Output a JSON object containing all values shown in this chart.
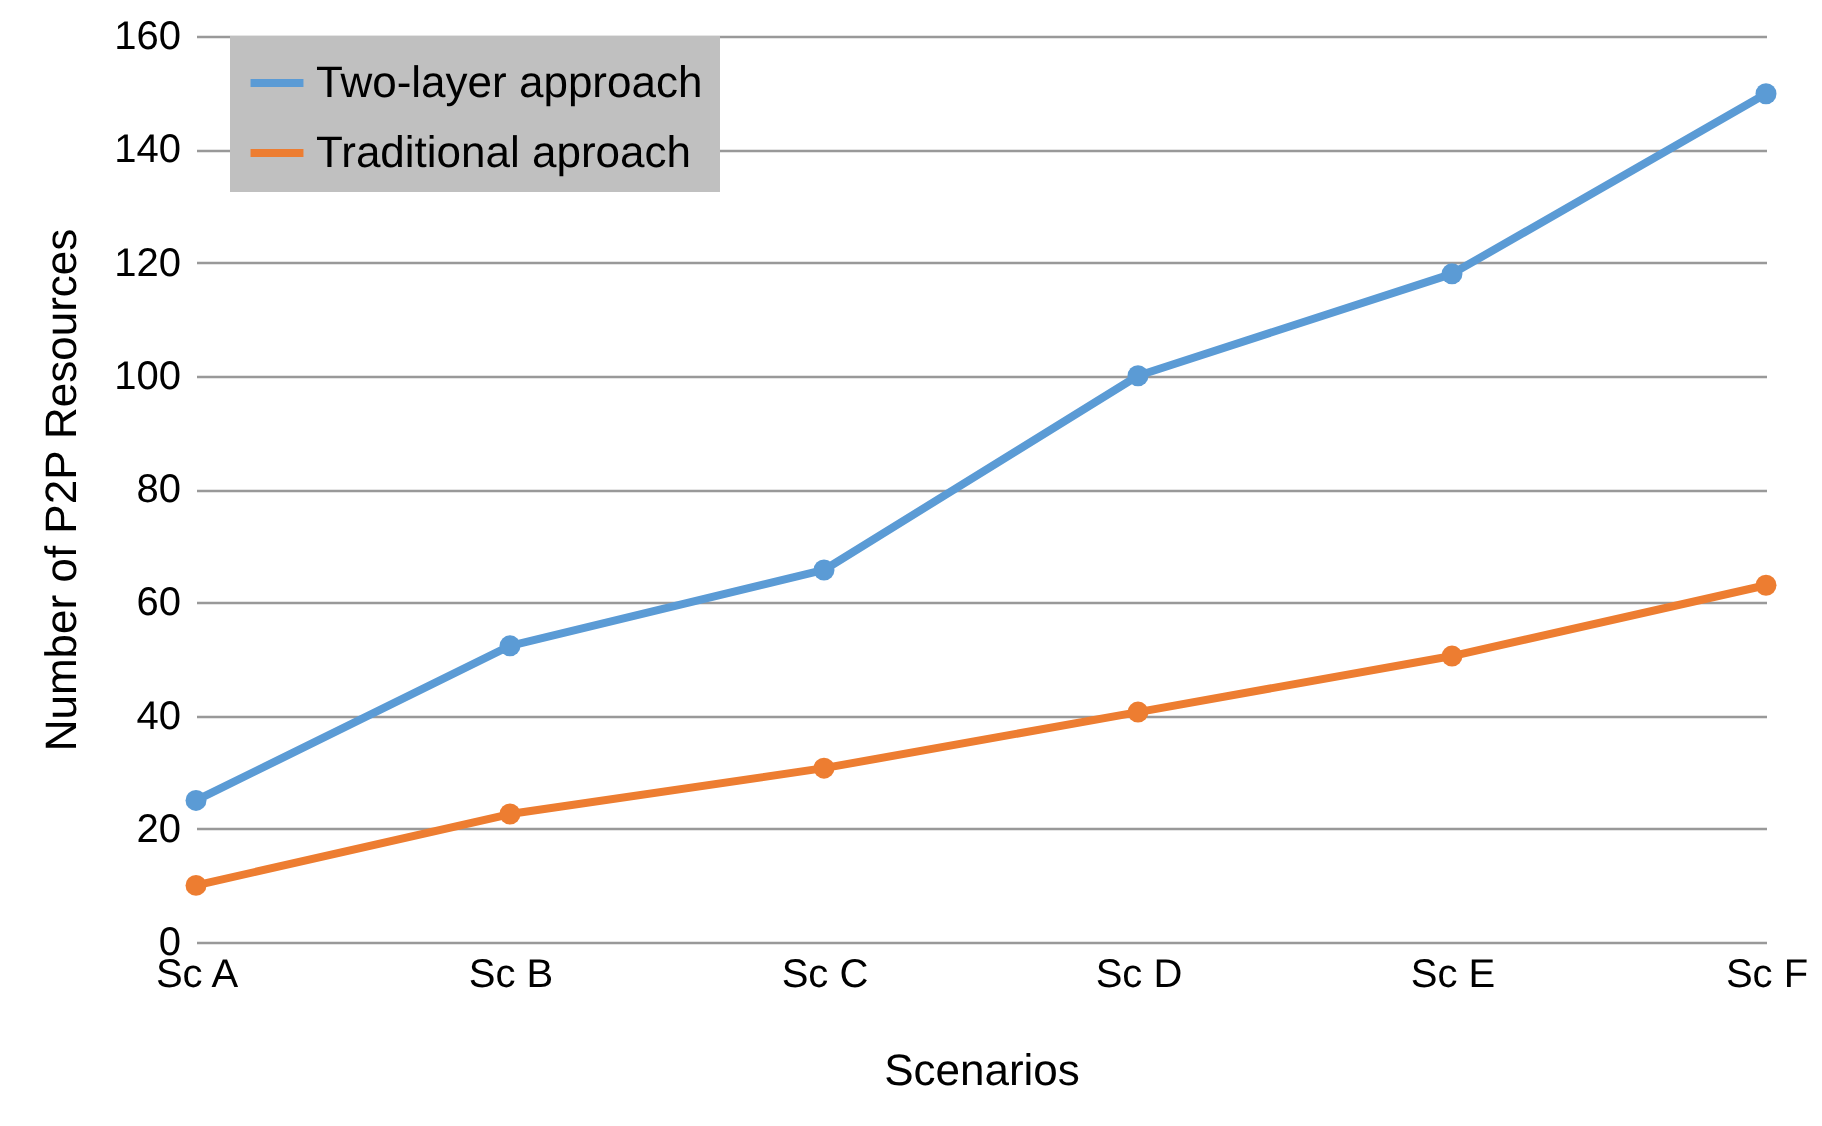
{
  "chart_data": {
    "type": "line",
    "xlabel": "Scenarios",
    "ylabel": "Number of P2P Resources",
    "categories": [
      "Sc A",
      "Sc B",
      "Sc C",
      "Sc D",
      "Sc E",
      "Sc F"
    ],
    "series": [
      {
        "name": "Two-layer approach",
        "color": "#5b9bd5",
        "values": [
          25,
          52.3,
          65.7,
          100,
          118,
          149.8
        ]
      },
      {
        "name": "Traditional aproach",
        "color": "#ed7d31",
        "values": [
          10,
          22.6,
          30.7,
          40.6,
          50.5,
          63
        ]
      }
    ],
    "ylim": [
      0,
      160
    ],
    "yticks": [
      0,
      20,
      40,
      60,
      80,
      100,
      120,
      140,
      160
    ],
    "grid": "y",
    "legend": "top left",
    "marker": "circle",
    "line_style": "solid"
  }
}
